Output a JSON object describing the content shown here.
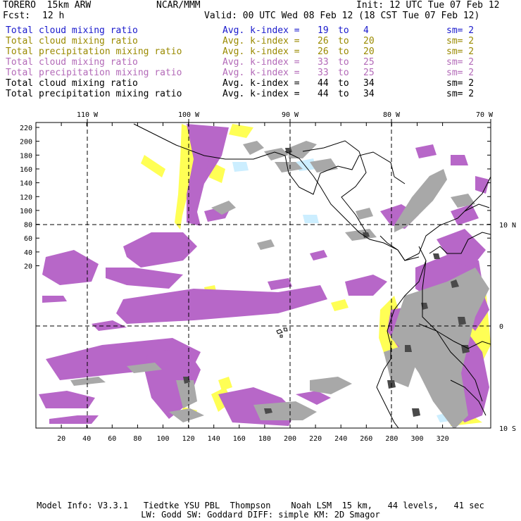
{
  "header": {
    "model": "TORERO  15km ARW",
    "org": "NCAR/MMM",
    "init": "Init: 12 UTC Tue 07 Feb 12",
    "fcst_label": "Fcst:",
    "fcst_value": "12 h",
    "valid": "Valid: 00 UTC Wed 08 Feb 12 (18 CST Tue 07 Feb 12)"
  },
  "legend": [
    {
      "field": "Total cloud mixing ratio",
      "kindex": "Avg. k-index =",
      "from": "19",
      "to_label": "to",
      "to": "4",
      "sm": "sm= 2",
      "color": "#1a1acc"
    },
    {
      "field": "Total cloud mixing ratio",
      "kindex": "Avg. k-index =",
      "from": "26",
      "to_label": "to",
      "to": "20",
      "sm": "sm= 2",
      "color": "#9a8a00"
    },
    {
      "field": "Total precipitation mixing ratio",
      "kindex": "Avg. k-index =",
      "from": "26",
      "to_label": "to",
      "to": "20",
      "sm": "sm= 2",
      "color": "#9a8a00"
    },
    {
      "field": "Total cloud mixing ratio",
      "kindex": "Avg. k-index =",
      "from": "33",
      "to_label": "to",
      "to": "25",
      "sm": "sm= 2",
      "color": "#b36ab8"
    },
    {
      "field": "Total precipitation mixing ratio",
      "kindex": "Avg. k-index =",
      "from": "33",
      "to_label": "to",
      "to": "25",
      "sm": "sm= 2",
      "color": "#b36ab8"
    },
    {
      "field": "Total cloud mixing ratio",
      "kindex": "Avg. k-index =",
      "from": "44",
      "to_label": "to",
      "to": "34",
      "sm": "sm= 2",
      "color": "#000000"
    },
    {
      "field": "Total precipitation mixing ratio",
      "kindex": "Avg. k-index =",
      "from": "44",
      "to_label": "to",
      "to": "34",
      "sm": "sm= 2",
      "color": "#000000"
    }
  ],
  "map": {
    "lon_labels": [
      "110 W",
      "100 W",
      "90 W",
      "80 W",
      "70 W"
    ],
    "lat_labels": [
      "10 N",
      "0",
      "10 S"
    ],
    "grid_x_ticks": [
      "20",
      "40",
      "60",
      "80",
      "100",
      "120",
      "140",
      "160",
      "180",
      "200",
      "220",
      "240",
      "260",
      "280",
      "300",
      "320"
    ],
    "grid_y_ticks": [
      "220",
      "200",
      "180",
      "160",
      "140",
      "120",
      "100",
      "80",
      "60",
      "40",
      "20"
    ],
    "colors": {
      "yellow": "#ffff55",
      "purple": "#b767c8",
      "gray": "#a0a0a0",
      "dark_gray": "#555555",
      "cyan": "#cceeff"
    }
  },
  "footer": {
    "line1": "Model Info: V3.3.1   Tiedtke YSU PBL  Thompson    Noah LSM  15 km,   44 levels,   41 sec",
    "line2": "LW: Godd SW: Goddard DIFF: simple KM: 2D Smagor"
  }
}
